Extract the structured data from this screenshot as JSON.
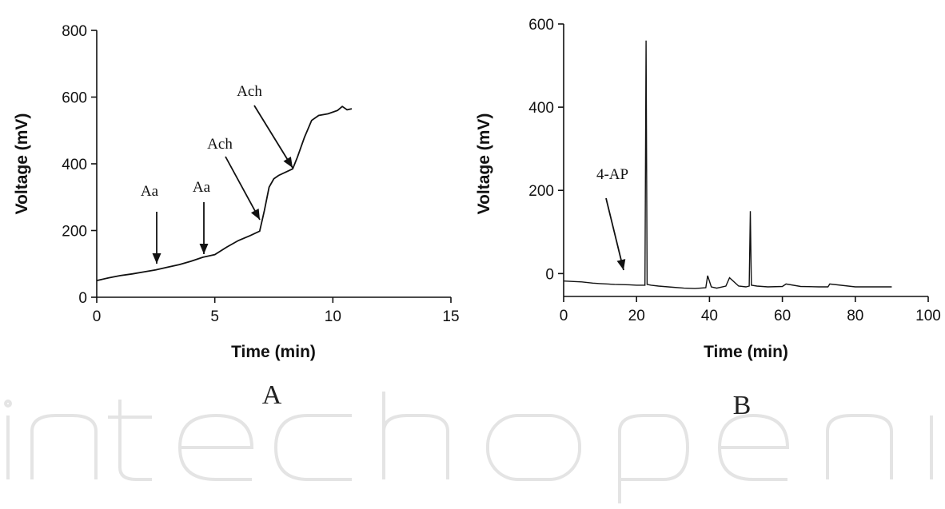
{
  "colors": {
    "ink": "#111111",
    "watermark": "#e6e6e6"
  },
  "watermark": {
    "text": "intechopen",
    "kind": "logo-watermark"
  },
  "chart_data": [
    {
      "type": "line",
      "panel": "A",
      "xlabel": "Time (min)",
      "ylabel": "Voltage (mV)",
      "xlim": [
        0,
        15
      ],
      "ylim": [
        0,
        800
      ],
      "xticks": [
        0,
        5,
        10,
        15
      ],
      "yticks": [
        0,
        200,
        400,
        600,
        800
      ],
      "grid": false,
      "series": [
        {
          "x": [
            0,
            0.5,
            1,
            1.5,
            2,
            2.5,
            3,
            3.5,
            4,
            4.5,
            5,
            5.5,
            6,
            6.5,
            6.9,
            7.1,
            7.3,
            7.5,
            7.7,
            8.0,
            8.3,
            8.5,
            8.8,
            9.1,
            9.4,
            9.8,
            10.2,
            10.4,
            10.6,
            10.8
          ],
          "y": [
            50,
            58,
            65,
            70,
            76,
            82,
            90,
            98,
            108,
            120,
            128,
            150,
            170,
            185,
            198,
            260,
            330,
            355,
            365,
            375,
            385,
            420,
            480,
            530,
            545,
            550,
            560,
            572,
            562,
            565
          ]
        }
      ],
      "annotations": [
        {
          "text": "Aa",
          "x": 2.6,
          "y": 80
        },
        {
          "text": "Aa",
          "x": 4.5,
          "y": 118
        },
        {
          "text": "Ach",
          "x": 6.9,
          "y": 210
        },
        {
          "text": "Ach",
          "x": 8.5,
          "y": 380
        }
      ]
    },
    {
      "type": "line",
      "panel": "B",
      "xlabel": "Time (min)",
      "ylabel": "Voltage (mV)",
      "xlim": [
        0,
        100
      ],
      "ylim": [
        -55,
        600
      ],
      "xticks": [
        0,
        20,
        40,
        60,
        80,
        100
      ],
      "yticks": [
        0,
        200,
        400,
        600
      ],
      "grid": false,
      "series": [
        {
          "x": [
            0,
            5,
            8,
            10,
            14,
            18,
            20,
            22.3,
            22.6,
            22.9,
            24,
            26,
            30,
            33,
            36,
            39,
            39.5,
            40.5,
            42,
            44.5,
            45.5,
            48,
            50,
            50.9,
            51.2,
            51.5,
            53,
            56,
            60,
            61,
            65,
            70,
            72.5,
            73,
            80,
            90
          ],
          "y": [
            -18,
            -20,
            -23,
            -24,
            -26,
            -27,
            -28,
            -28,
            560,
            -26,
            -28,
            -30,
            -33,
            -35,
            -36,
            -34,
            -5,
            -32,
            -35,
            -30,
            -10,
            -30,
            -32,
            -30,
            150,
            -28,
            -30,
            -32,
            -31,
            -25,
            -31,
            -32,
            -32,
            -25,
            -32,
            -32
          ]
        }
      ],
      "annotations": [
        {
          "text": "4-AP",
          "x": 17,
          "y": -5
        }
      ]
    }
  ],
  "panels": {
    "A": {
      "label": "A"
    },
    "B": {
      "label": "B"
    }
  }
}
